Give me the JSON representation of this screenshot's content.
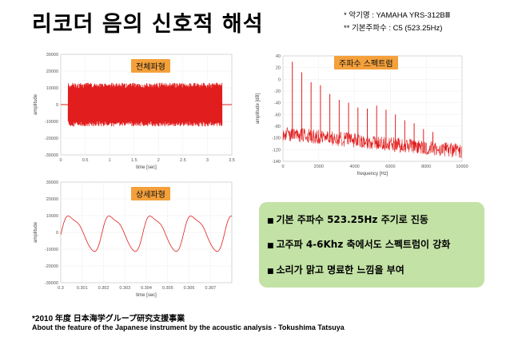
{
  "page": {
    "title": "리코더 음의 신호적 해석",
    "note1": "* 악기명 : YAMAHA YRS-312BⅢ",
    "note2": "** 기본주파수 : C5  (523.25Hz)",
    "bullets": [
      "기본 주파수 523.25Hz 주기로 진동",
      "고주파 4-6Khz 축에서도 스펙트럼이 강화",
      "소리가 맑고 명료한 느낌을 부여"
    ],
    "footer1": "*2010 年度 日本海学グループ研究支援事業",
    "footer2": "About the feature of the Japanese instrument by the acoustic analysis - Tokushima Tatsuya",
    "colors": {
      "trace": "#e11d1d",
      "tag": "#f4a03b",
      "box": "#c3e2a6"
    }
  },
  "chart_data": [
    {
      "type": "area",
      "tag": "전체파형",
      "xlabel": "time [sec]",
      "ylabel": "amplitude",
      "ylim": [
        -30000,
        30000
      ],
      "yticks": [
        "30000",
        "20000",
        "10000",
        "0",
        "-10000",
        "-20000",
        "-30000"
      ],
      "xticks": [
        "0",
        "0.5",
        "1",
        "1.5",
        "2",
        "2.5",
        "3",
        "3.5"
      ],
      "xlim": [
        0,
        3.5
      ],
      "envelope": {
        "start": 0.15,
        "end": 3.3,
        "peak": 13000
      }
    },
    {
      "type": "line",
      "tag": "주파수 스펙트럼",
      "xlabel": "frequency [Hz]",
      "ylabel": "amplitude [dB]",
      "xlim": [
        0,
        10000
      ],
      "ylim": [
        -140,
        40
      ],
      "yticks": [
        "40",
        "20",
        "0",
        "-20",
        "-40",
        "-60",
        "-80",
        "-100",
        "-120",
        "-140"
      ],
      "xticks": [
        "0",
        "2000",
        "4000",
        "6000",
        "8000",
        "10000"
      ],
      "peaks": [
        {
          "f": 523.25,
          "db": 30
        },
        {
          "f": 1046.5,
          "db": 12
        },
        {
          "f": 1569.75,
          "db": -5
        },
        {
          "f": 2093,
          "db": -10
        },
        {
          "f": 2616.25,
          "db": -25
        },
        {
          "f": 3139.5,
          "db": -35
        },
        {
          "f": 3662.75,
          "db": -40
        },
        {
          "f": 4186,
          "db": -48
        },
        {
          "f": 4709.25,
          "db": -50
        },
        {
          "f": 5232.5,
          "db": -45
        },
        {
          "f": 5755.75,
          "db": -52
        },
        {
          "f": 6279,
          "db": -60
        },
        {
          "f": 6802.25,
          "db": -70
        },
        {
          "f": 7325.5,
          "db": -75
        },
        {
          "f": 7848.75,
          "db": -85
        },
        {
          "f": 8372,
          "db": -90
        }
      ]
    },
    {
      "type": "line",
      "tag": "상세파형",
      "xlabel": "time [sec]",
      "ylabel": "amplitude",
      "xlim": [
        0.3,
        0.308
      ],
      "ylim": [
        -30000,
        30000
      ],
      "yticks": [
        "30000",
        "20000",
        "10000",
        "0",
        "-10000",
        "-20000",
        "-30000"
      ],
      "xticks": [
        "0.3",
        "0.301",
        "0.302",
        "0.303",
        "0.304",
        "0.305",
        "0.306",
        "0.307"
      ],
      "frequency": 523.25,
      "amplitude": 12000
    }
  ]
}
